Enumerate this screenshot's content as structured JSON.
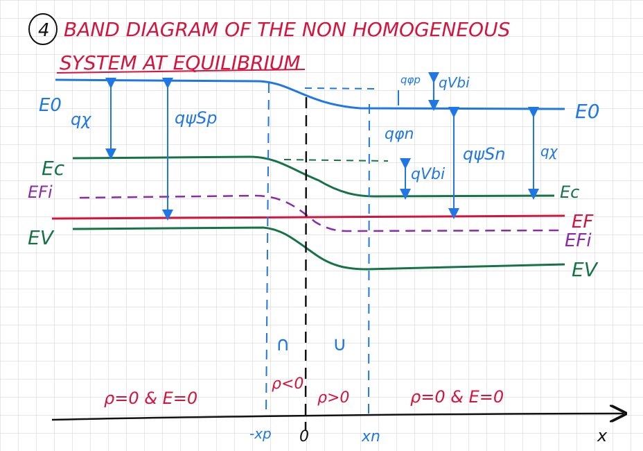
{
  "heading": {
    "number": "4",
    "line1": "BAND DIAGRAM OF THE NON HOMOGENEOUS",
    "line2": "SYSTEM AT EQUILIBRIUM"
  },
  "levels": {
    "vacuum_left": "E0",
    "vacuum_right": "E0",
    "ec_left": "Ec",
    "ec_right": "Ec",
    "efi_left": "EFi",
    "efi_right": "EFi",
    "ef_right": "EF",
    "ev_left": "EV",
    "ev_right": "EV"
  },
  "annotations": {
    "chi_left": "qχ",
    "psi_sp": "qψSp",
    "q_phi_p": "qφp",
    "q_vbi_top": "qVbi",
    "q_phi_n": "qφn",
    "psi_sn": "qψSn",
    "chi_right": "qχ",
    "q_vbi_mid": "qVbi"
  },
  "regions": {
    "rho_left": "ρ=0 & E=0",
    "rho_mid_neg": "ρ<0",
    "rho_mid_pos": "ρ>0",
    "rho_right": "ρ=0 & E=0",
    "curv_down": "∩",
    "curv_up": "∪"
  },
  "axis": {
    "xp": "-xp",
    "origin": "0",
    "xn": "xn",
    "x": "x"
  },
  "colors": {
    "title": "#d4143c",
    "blue": "#1f77e6",
    "green": "#157347",
    "red": "#d4143c",
    "purple": "#8a2ba8",
    "grid": "#c9c9c9",
    "black": "#111111"
  }
}
